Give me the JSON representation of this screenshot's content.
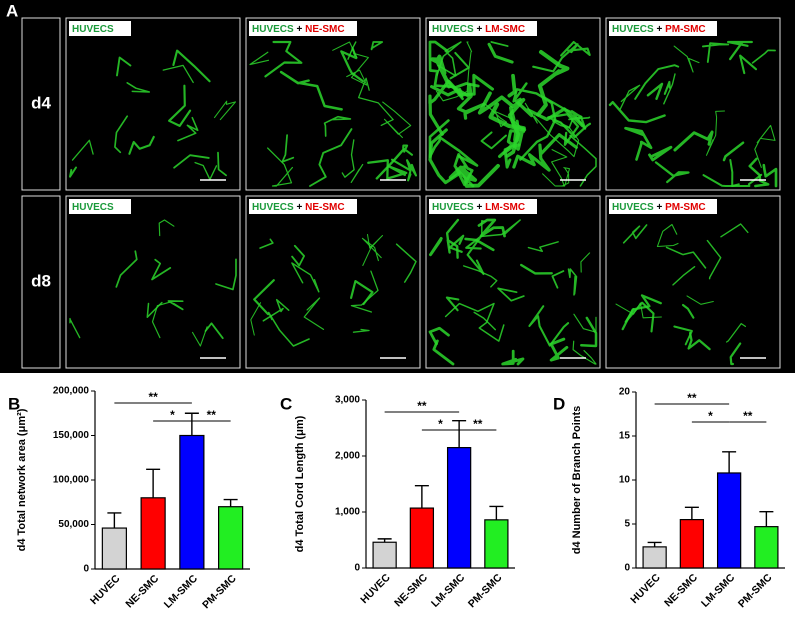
{
  "panel_a": {
    "panel": "A",
    "rows": [
      "d4",
      "d8"
    ],
    "columns": [
      {
        "huvec": "HUVECS"
      },
      {
        "huvec": "HUVECS",
        "plus": "+",
        "smc": "NE-SMC"
      },
      {
        "huvec": "HUVECS",
        "plus": "+",
        "smc": "LM-SMC"
      },
      {
        "huvec": "HUVECS",
        "plus": "+",
        "smc": "PM-SMC"
      }
    ]
  },
  "chart_data": [
    {
      "type": "bar",
      "panel": "B",
      "ylabel": "d4 Total network area (μm²)",
      "categories": [
        "HUVEC",
        "NE-SMC",
        "LM-SMC",
        "PM-SMC"
      ],
      "values": [
        46000,
        80000,
        150000,
        70000
      ],
      "errors": [
        17000,
        32000,
        25000,
        8000
      ],
      "colors": [
        "#d3d3d3",
        "#ff0000",
        "#0000ff",
        "#22ee22"
      ],
      "ylim": [
        0,
        200000
      ],
      "yticks": [
        0,
        {
          "value": 50000,
          "label": "50,000"
        },
        {
          "value": 100000,
          "label": "100,000"
        },
        {
          "value": 150000,
          "label": "150,000"
        },
        {
          "value": 200000,
          "label": "200,000"
        }
      ],
      "significance": [
        {
          "from": 0,
          "to": 2,
          "label": "**"
        },
        {
          "from": 1,
          "to": 2,
          "label": "*"
        },
        {
          "from": 2,
          "to": 3,
          "label": "**"
        }
      ]
    },
    {
      "type": "bar",
      "panel": "C",
      "ylabel": "d4 Total Cord Length (μm)",
      "categories": [
        "HUVEC",
        "NE-SMC",
        "LM-SMC",
        "PM-SMC"
      ],
      "values": [
        460,
        1070,
        2150,
        860
      ],
      "errors": [
        60,
        400,
        480,
        240
      ],
      "colors": [
        "#d3d3d3",
        "#ff0000",
        "#0000ff",
        "#22ee22"
      ],
      "ylim": [
        0,
        3000
      ],
      "yticks": [
        0,
        {
          "value": 1000,
          "label": "1,000"
        },
        {
          "value": 2000,
          "label": "2,000"
        },
        {
          "value": 3000,
          "label": "3,000"
        }
      ],
      "significance": [
        {
          "from": 0,
          "to": 2,
          "label": "**"
        },
        {
          "from": 1,
          "to": 2,
          "label": "*"
        },
        {
          "from": 2,
          "to": 3,
          "label": "**"
        }
      ]
    },
    {
      "type": "bar",
      "panel": "D",
      "ylabel": "d4 Number of Branch Points",
      "categories": [
        "HUVEC",
        "NE-SMC",
        "LM-SMC",
        "PM-SMC"
      ],
      "values": [
        2.4,
        5.5,
        10.8,
        4.7
      ],
      "errors": [
        0.5,
        1.4,
        2.4,
        1.7
      ],
      "colors": [
        "#d3d3d3",
        "#ff0000",
        "#0000ff",
        "#22ee22"
      ],
      "ylim": [
        0,
        20
      ],
      "yticks": [
        0,
        5,
        10,
        15,
        20
      ],
      "significance": [
        {
          "from": 0,
          "to": 2,
          "label": "**"
        },
        {
          "from": 1,
          "to": 2,
          "label": "*"
        },
        {
          "from": 2,
          "to": 3,
          "label": "**"
        }
      ]
    }
  ]
}
